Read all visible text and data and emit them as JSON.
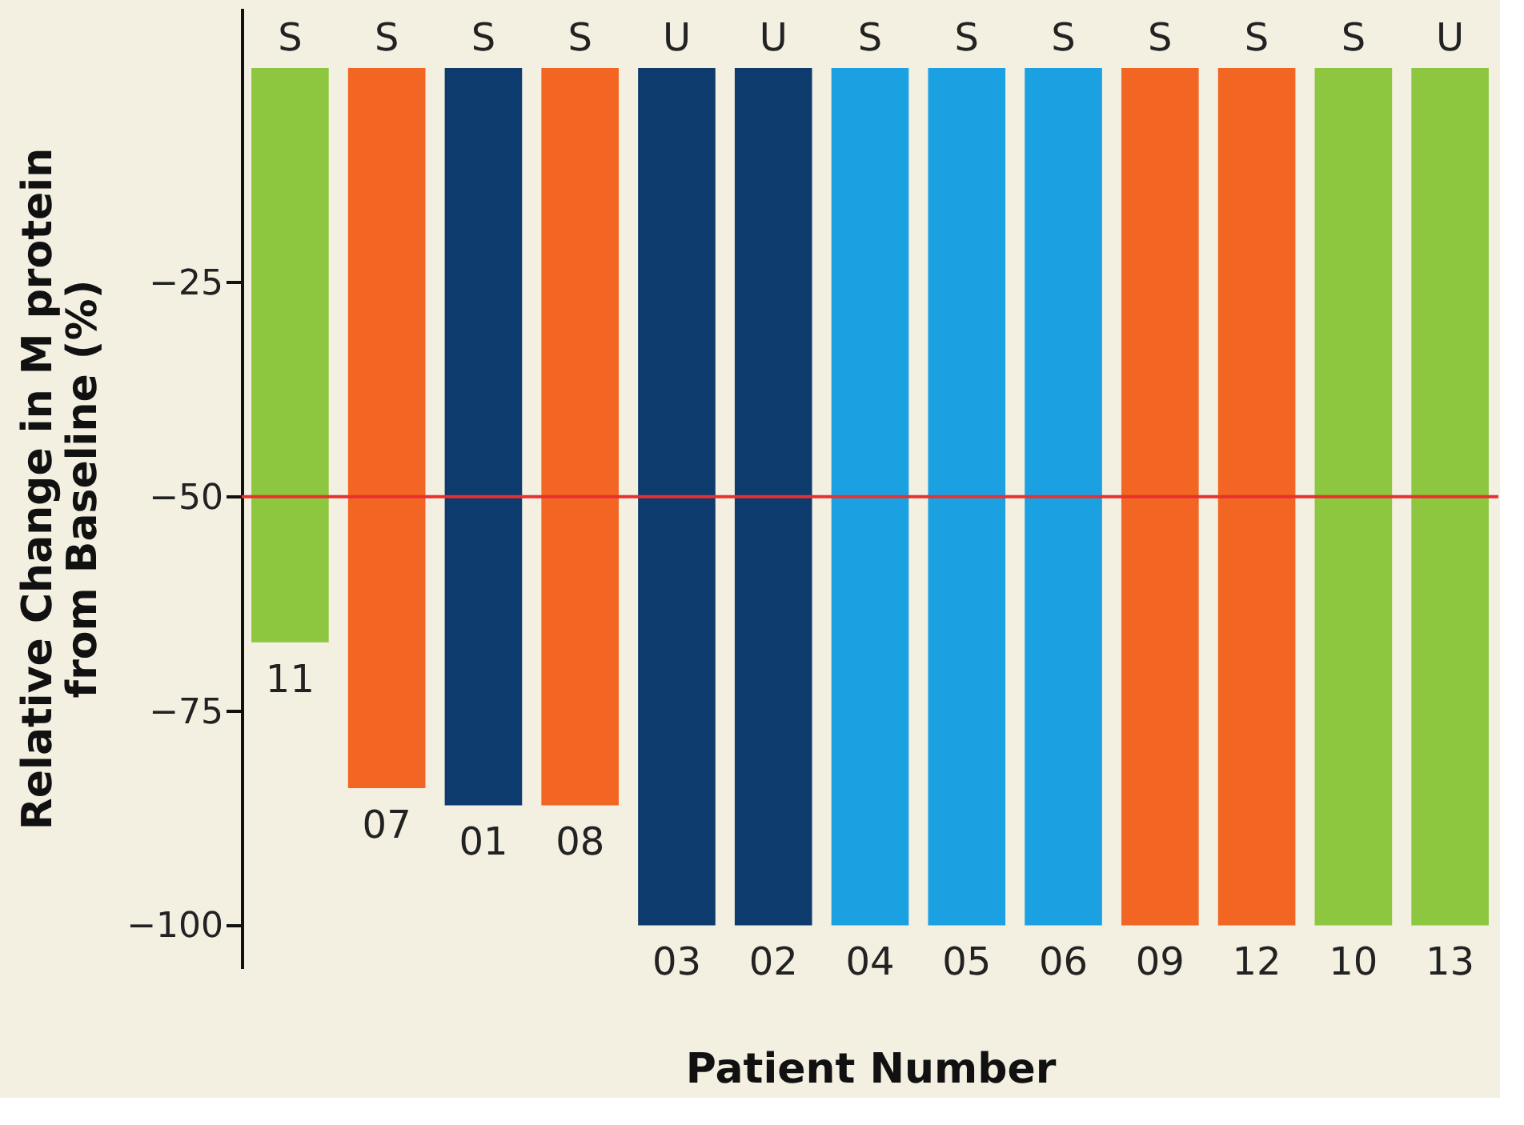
{
  "chart_data": {
    "type": "bar",
    "xlabel": "Patient Number",
    "ylabel": "Relative Change in M protein\nfrom Baseline (%)",
    "categories": [
      "11",
      "07",
      "01",
      "08",
      "03",
      "02",
      "04",
      "05",
      "06",
      "09",
      "12",
      "10",
      "13"
    ],
    "values": [
      -67,
      -84,
      -86,
      -86,
      -100,
      -100,
      -100,
      -100,
      -100,
      -100,
      -100,
      -100,
      -100
    ],
    "colors": [
      "#8dc63f",
      "#f26522",
      "#0d3b6e",
      "#f26522",
      "#0d3b6e",
      "#0d3b6e",
      "#1ba1e2",
      "#1ba1e2",
      "#1ba1e2",
      "#f26522",
      "#f26522",
      "#8dc63f",
      "#8dc63f"
    ],
    "ylim": [
      -105,
      7
    ],
    "yticks": [
      -25,
      -50,
      -75,
      -100
    ],
    "grid": false,
    "tick_labels": "y",
    "ref_lines": [
      {
        "axis": "y",
        "value": -50,
        "color": "#e8312f"
      }
    ],
    "annotations": [
      {
        "text": "S",
        "x": "11",
        "y": 0
      },
      {
        "text": "S",
        "x": "07",
        "y": 0
      },
      {
        "text": "S",
        "x": "01",
        "y": 0
      },
      {
        "text": "S",
        "x": "08",
        "y": 0
      },
      {
        "text": "U",
        "x": "03",
        "y": 0
      },
      {
        "text": "U",
        "x": "02",
        "y": 0
      },
      {
        "text": "S",
        "x": "04",
        "y": 0
      },
      {
        "text": "S",
        "x": "05",
        "y": 0
      },
      {
        "text": "S",
        "x": "06",
        "y": 0
      },
      {
        "text": "S",
        "x": "09",
        "y": 0
      },
      {
        "text": "S",
        "x": "12",
        "y": 0
      },
      {
        "text": "S",
        "x": "10",
        "y": 0
      },
      {
        "text": "U",
        "x": "13",
        "y": 0
      }
    ]
  }
}
